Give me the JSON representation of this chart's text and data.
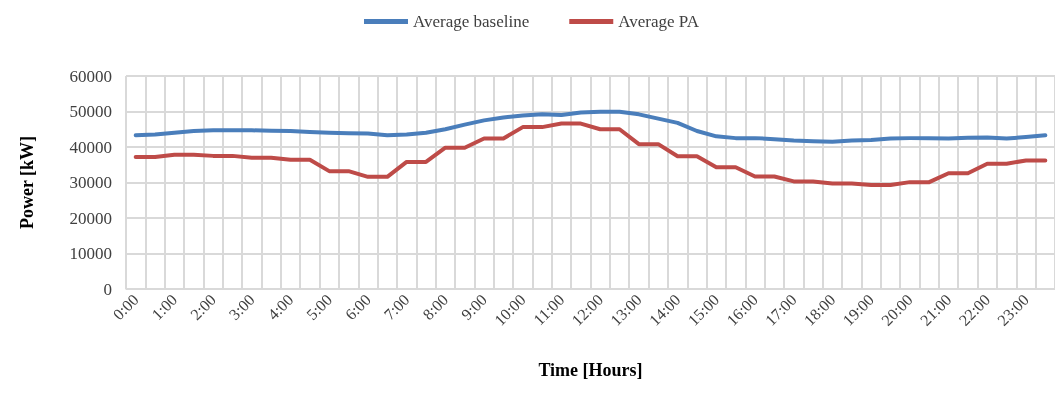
{
  "chart_data": {
    "type": "line",
    "xlabel": "Time [Hours]",
    "ylabel": "Power [kW]",
    "categories": [
      "0:00",
      null,
      "1:00",
      null,
      "2:00",
      null,
      "3:00",
      null,
      "4:00",
      null,
      "5:00",
      null,
      "6:00",
      null,
      "7:00",
      null,
      "8:00",
      null,
      "9:00",
      null,
      "10:00",
      null,
      "11:00",
      null,
      "12:00",
      null,
      "13:00",
      null,
      "14:00",
      null,
      "15:00",
      null,
      "16:00",
      null,
      "17:00",
      null,
      "18:00",
      null,
      "19:00",
      null,
      "20:00",
      null,
      "21:00",
      null,
      "22:00",
      null,
      "23:00",
      null
    ],
    "series": [
      {
        "name": "Average baseline",
        "color": "#4a7ebb",
        "values": [
          43300,
          43500,
          44000,
          44500,
          44700,
          44700,
          44700,
          44600,
          44500,
          44200,
          44000,
          43900,
          43800,
          43300,
          43500,
          44000,
          45000,
          46300,
          47500,
          48300,
          48900,
          49200,
          49000,
          49700,
          49900,
          49900,
          49200,
          48000,
          46800,
          44500,
          43000,
          42500,
          42500,
          42200,
          41800,
          41600,
          41500,
          41800,
          42000,
          42400,
          42500,
          42500,
          42400,
          42600,
          42700,
          42400,
          42800,
          43300
        ]
      },
      {
        "name": "Average PA",
        "color": "#be4b48",
        "values": [
          37200,
          37200,
          37800,
          37800,
          37500,
          37500,
          37000,
          37000,
          36400,
          36400,
          33200,
          33200,
          31600,
          31600,
          35800,
          35800,
          39800,
          39800,
          42400,
          42400,
          45600,
          45600,
          46600,
          46600,
          45000,
          45000,
          40800,
          40800,
          37400,
          37400,
          34300,
          34300,
          31700,
          31700,
          30300,
          30300,
          29700,
          29700,
          29300,
          29300,
          30100,
          30100,
          32600,
          32600,
          35300,
          35300,
          36200,
          36200
        ]
      }
    ],
    "ylim": [
      0,
      60000
    ],
    "yticks": [
      0,
      10000,
      20000,
      30000,
      40000,
      50000,
      60000
    ],
    "grid": true,
    "legend": "top",
    "marker": "none",
    "line_style": "solid"
  }
}
